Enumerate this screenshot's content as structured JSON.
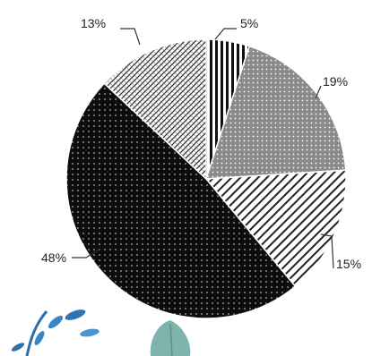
{
  "chart_data": {
    "type": "pie",
    "values": [
      5,
      19,
      15,
      48,
      13
    ],
    "labels": [
      "5%",
      "19%",
      "15%",
      "48%",
      "13%"
    ],
    "start_angle_deg": 0,
    "direction": "clockwise",
    "patterns": [
      "vertical-stripes",
      "gray-dots",
      "diagonal-stripes",
      "black-dots",
      "crosshatch"
    ],
    "colors": {
      "stripes": "#111111",
      "gray": "#8a8a8a",
      "black": "#0d0d0d",
      "background": "#ffffff"
    }
  },
  "decorations": {
    "bottom_left": "blue-leaf-sprig-icon",
    "bottom_center": "teal-leaf-icon"
  }
}
